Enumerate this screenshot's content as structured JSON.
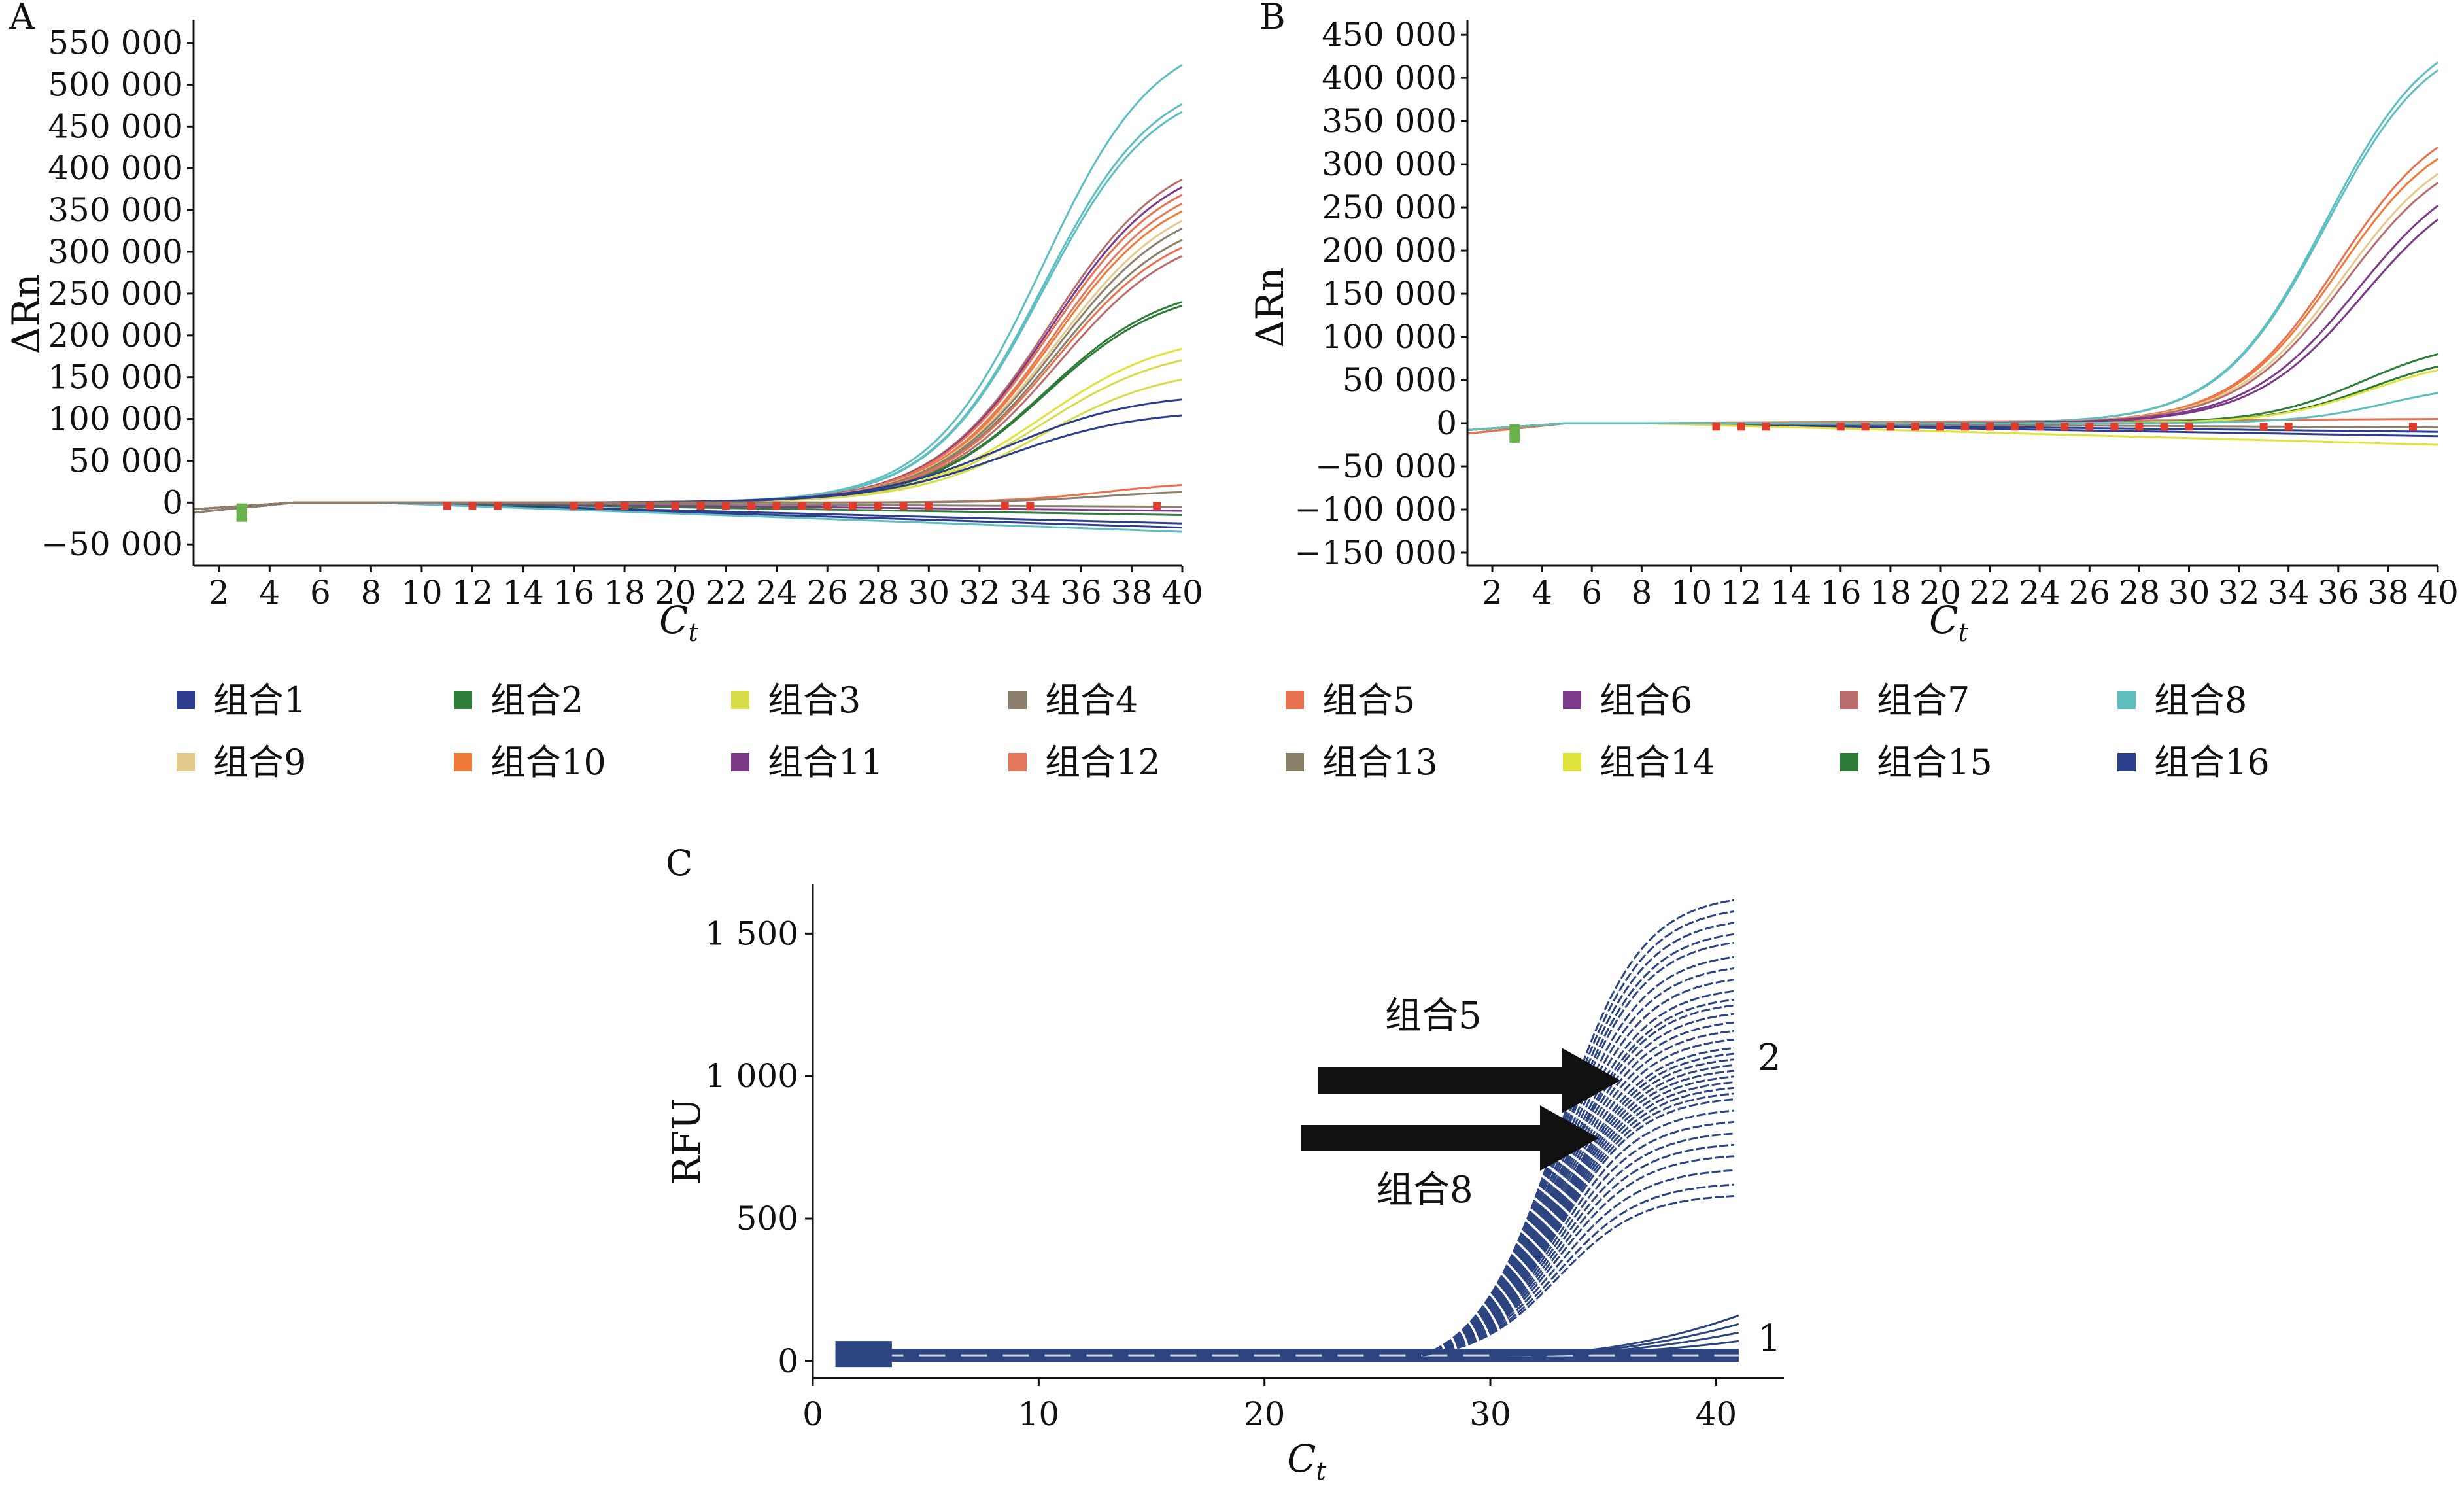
{
  "panels": [
    {
      "label": "A",
      "ylabel": "ΔRn",
      "xlabel_main": "C",
      "xlabel_sub": "t",
      "yticks": [
        "550 000",
        "500 000",
        "450 000",
        "400 000",
        "350 000",
        "300 000",
        "250 000",
        "200 000",
        "150 000",
        "100 000",
        "50 000",
        "0",
        "−50 000"
      ]
    },
    {
      "label": "B",
      "ylabel": "ΔRn",
      "xlabel_main": "C",
      "xlabel_sub": "t",
      "yticks": [
        "450 000",
        "400 000",
        "350 000",
        "300 000",
        "250 000",
        "200 000",
        "150 000",
        "100 000",
        "50 000",
        "0",
        "−50 000",
        "−100 000",
        "−150 000"
      ]
    },
    {
      "label": "C",
      "ylabel": "RFU",
      "xlabel_main": "C",
      "xlabel_sub": "t",
      "yticks": [
        "1 500",
        "1 000",
        "500",
        "0"
      ],
      "annotations": {
        "arrow_upper": "组合5",
        "arrow_lower": "组合8",
        "label_top": "2",
        "label_bottom": "1"
      }
    }
  ],
  "xticks_ab": [
    "2",
    "4",
    "6",
    "8",
    "10",
    "12",
    "14",
    "16",
    "18",
    "20",
    "22",
    "24",
    "26",
    "28",
    "30",
    "32",
    "34",
    "36",
    "38",
    "40"
  ],
  "xticks_c": [
    "0",
    "10",
    "20",
    "30",
    "40"
  ],
  "legend": [
    {
      "label": "组合1",
      "color": "#2e3d8e"
    },
    {
      "label": "组合2",
      "color": "#2f7d3a"
    },
    {
      "label": "组合3",
      "color": "#d6dc4a"
    },
    {
      "label": "组合4",
      "color": "#8c7f6e"
    },
    {
      "label": "组合5",
      "color": "#e8714f"
    },
    {
      "label": "组合6",
      "color": "#7d3a8a"
    },
    {
      "label": "组合7",
      "color": "#b96d6d"
    },
    {
      "label": "组合8",
      "color": "#5fbfc0"
    },
    {
      "label": "组合9",
      "color": "#e6c98c"
    },
    {
      "label": "组合10",
      "color": "#f07a3a"
    },
    {
      "label": "组合11",
      "color": "#7a3a86"
    },
    {
      "label": "组合12",
      "color": "#e5785c"
    },
    {
      "label": "组合13",
      "color": "#8a8068"
    },
    {
      "label": "组合14",
      "color": "#dfe33c"
    },
    {
      "label": "组合15",
      "color": "#2d7a36"
    },
    {
      "label": "组合16",
      "color": "#2c3f8c"
    }
  ],
  "chart_data": [
    {
      "type": "line",
      "panel": "A",
      "xlabel": "Ct",
      "ylabel": "ΔRn",
      "xlim": [
        1,
        40
      ],
      "ylim": [
        -60000,
        570000
      ],
      "series": [
        {
          "color": "#5fbfc0",
          "plateau": 560000,
          "mid": 34.5,
          "k": 0.45
        },
        {
          "color": "#5fbfc0",
          "plateau": 510000,
          "mid": 34.5,
          "k": 0.45
        },
        {
          "color": "#5fbfc0",
          "plateau": 500000,
          "mid": 34.5,
          "k": 0.45
        },
        {
          "color": "#b96d6d",
          "plateau": 420000,
          "mid": 34.8,
          "k": 0.43
        },
        {
          "color": "#7d3a8a",
          "plateau": 410000,
          "mid": 34.8,
          "k": 0.43
        },
        {
          "color": "#e8714f",
          "plateau": 400000,
          "mid": 34.8,
          "k": 0.43
        },
        {
          "color": "#e5785c",
          "plateau": 390000,
          "mid": 34.9,
          "k": 0.43
        },
        {
          "color": "#f07a3a",
          "plateau": 380000,
          "mid": 34.9,
          "k": 0.43
        },
        {
          "color": "#e6c98c",
          "plateau": 370000,
          "mid": 35.0,
          "k": 0.42
        },
        {
          "color": "#8c7f6e",
          "plateau": 360000,
          "mid": 35.0,
          "k": 0.42
        },
        {
          "color": "#8a8068",
          "plateau": 345000,
          "mid": 35.0,
          "k": 0.42
        },
        {
          "color": "#e8714f",
          "plateau": 335000,
          "mid": 35.0,
          "k": 0.42
        },
        {
          "color": "#b96d6d",
          "plateau": 325000,
          "mid": 35.1,
          "k": 0.42
        },
        {
          "color": "#2f7d3a",
          "plateau": 260000,
          "mid": 34.6,
          "k": 0.42
        },
        {
          "color": "#2d7a36",
          "plateau": 255000,
          "mid": 34.6,
          "k": 0.42
        },
        {
          "color": "#dfe33c",
          "plateau": 200000,
          "mid": 34.5,
          "k": 0.4
        },
        {
          "color": "#d6dc4a",
          "plateau": 185000,
          "mid": 34.5,
          "k": 0.4
        },
        {
          "color": "#d6dc4a",
          "plateau": 160000,
          "mid": 34.5,
          "k": 0.4
        },
        {
          "color": "#2e3d8e",
          "plateau": 130000,
          "mid": 33.0,
          "k": 0.38
        },
        {
          "color": "#2c3f8c",
          "plateau": 110000,
          "mid": 33.0,
          "k": 0.38
        },
        {
          "color": "#e8714f",
          "plateau": 25000,
          "mid": 37.0,
          "k": 0.5
        },
        {
          "color": "#8c7f6e",
          "plateau": 15000,
          "mid": 37.0,
          "k": 0.5
        }
      ],
      "baselines": [
        {
          "color": "#2e3d8e",
          "end": -30000
        },
        {
          "color": "#2c3f8c",
          "end": -25000
        },
        {
          "color": "#2f7d3a",
          "end": -15000
        },
        {
          "color": "#5fbfc0",
          "end": -35000
        },
        {
          "color": "#7d3a8a",
          "end": -10000
        },
        {
          "color": "#8c7f6e",
          "end": -5000
        }
      ]
    },
    {
      "type": "line",
      "panel": "B",
      "xlabel": "Ct",
      "ylabel": "ΔRn",
      "xlim": [
        1,
        40
      ],
      "ylim": [
        -150000,
        460000
      ],
      "series": [
        {
          "color": "#5fbfc0",
          "plateau": 460000,
          "mid": 35.5,
          "k": 0.47
        },
        {
          "color": "#5fbfc0",
          "plateau": 450000,
          "mid": 35.5,
          "k": 0.47
        },
        {
          "color": "#e8714f",
          "plateau": 360000,
          "mid": 36.0,
          "k": 0.47
        },
        {
          "color": "#f07a3a",
          "plateau": 345000,
          "mid": 36.0,
          "k": 0.47
        },
        {
          "color": "#e6c98c",
          "plateau": 330000,
          "mid": 36.2,
          "k": 0.46
        },
        {
          "color": "#b96d6d",
          "plateau": 320000,
          "mid": 36.3,
          "k": 0.46
        },
        {
          "color": "#7d3a8a",
          "plateau": 300000,
          "mid": 36.8,
          "k": 0.45
        },
        {
          "color": "#7a3a86",
          "plateau": 285000,
          "mid": 37.0,
          "k": 0.45
        },
        {
          "color": "#2f7d3a",
          "plateau": 95000,
          "mid": 37.0,
          "k": 0.5
        },
        {
          "color": "#2d7a36",
          "plateau": 80000,
          "mid": 37.3,
          "k": 0.5
        },
        {
          "color": "#dfe33c",
          "plateau": 75000,
          "mid": 37.3,
          "k": 0.5
        },
        {
          "color": "#5fbfc0",
          "plateau": 45000,
          "mid": 38.0,
          "k": 0.55
        }
      ],
      "baselines": [
        {
          "color": "#2e3d8e",
          "end": -15000
        },
        {
          "color": "#2c3f8c",
          "end": -10000
        },
        {
          "color": "#dfe33c",
          "end": -25000
        },
        {
          "color": "#8c7f6e",
          "end": -5000
        },
        {
          "color": "#e8714f",
          "end": 5000
        }
      ]
    },
    {
      "type": "line",
      "panel": "C",
      "xlabel": "Ct",
      "ylabel": "RFU",
      "xlim": [
        0,
        43
      ],
      "ylim": [
        -60,
        1650
      ],
      "plateaus": [
        1600,
        1560,
        1520,
        1480,
        1450,
        1400,
        1360,
        1320,
        1280,
        1250,
        1230,
        1200,
        1170,
        1140,
        1110,
        1080,
        1060,
        1040,
        1020,
        1000,
        980,
        960,
        940,
        920,
        900,
        860,
        820,
        780,
        740,
        700,
        650,
        600,
        560
      ],
      "mid": 33.0,
      "k": 0.55,
      "low_curves": [
        140,
        110,
        80,
        50
      ],
      "color": "#2c4580"
    }
  ]
}
